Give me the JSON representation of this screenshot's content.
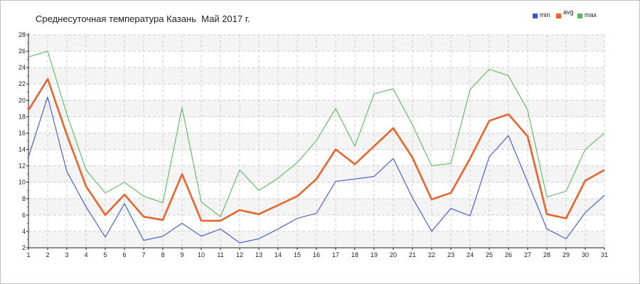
{
  "chart_data": {
    "type": "line",
    "title": "Среднесуточная температура Казань  Май 2017 г.",
    "xlabel": "",
    "ylabel": "",
    "x": [
      1,
      2,
      3,
      4,
      5,
      6,
      7,
      8,
      9,
      10,
      11,
      12,
      13,
      14,
      15,
      16,
      17,
      18,
      19,
      20,
      21,
      22,
      23,
      24,
      25,
      26,
      27,
      28,
      29,
      30,
      31
    ],
    "ylim": [
      2,
      28
    ],
    "yticks": [
      2,
      4,
      6,
      8,
      10,
      12,
      14,
      16,
      18,
      20,
      22,
      24,
      26,
      28
    ],
    "grid": true,
    "legend_position": "top-right",
    "series": [
      {
        "name": "min",
        "color": "#3a55d6",
        "values": [
          13.1,
          20.4,
          11.3,
          7.0,
          3.3,
          7.4,
          2.9,
          3.4,
          5.0,
          3.4,
          4.3,
          2.6,
          3.1,
          4.3,
          5.6,
          6.2,
          10.1,
          10.4,
          10.7,
          12.9,
          8.1,
          4.0,
          6.8,
          5.9,
          13.1,
          15.7,
          10.0,
          4.3,
          3.1,
          6.3,
          8.4
        ]
      },
      {
        "name": "avg",
        "color": "#e8652e",
        "values": [
          18.8,
          22.6,
          15.8,
          9.5,
          6.0,
          8.5,
          5.8,
          5.4,
          11.0,
          5.3,
          5.3,
          6.6,
          6.1,
          7.2,
          8.3,
          10.4,
          14.0,
          12.2,
          14.4,
          16.6,
          13.0,
          7.9,
          8.7,
          12.9,
          17.5,
          18.3,
          15.6,
          6.1,
          5.6,
          10.2,
          11.5
        ]
      },
      {
        "name": "max",
        "color": "#5cb85c",
        "values": [
          25.3,
          26.0,
          18.3,
          11.5,
          8.7,
          10.0,
          8.3,
          7.5,
          19.1,
          7.6,
          5.8,
          11.5,
          9.0,
          10.5,
          12.4,
          15.1,
          19.0,
          14.4,
          20.8,
          21.4,
          17.0,
          12.0,
          12.3,
          21.3,
          23.8,
          23.0,
          18.8,
          8.2,
          8.9,
          14.0,
          16.0
        ]
      }
    ]
  }
}
